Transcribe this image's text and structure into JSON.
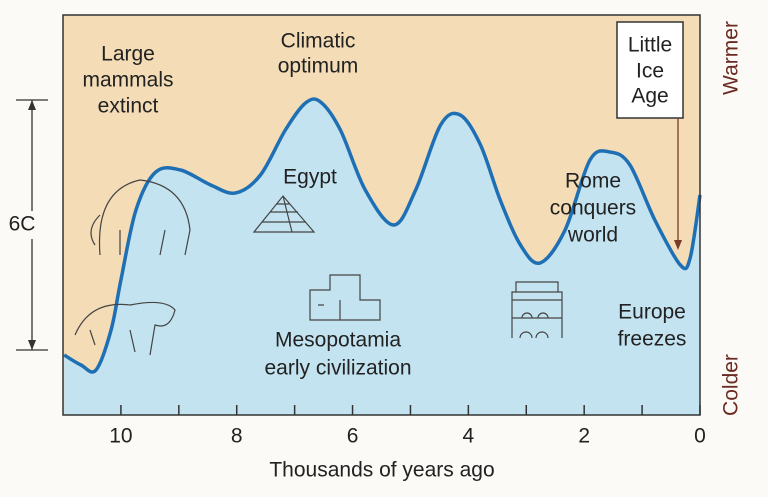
{
  "chart_data": {
    "type": "line",
    "x_label": "Thousands of years ago",
    "xlim": [
      11,
      0
    ],
    "xticks": [
      10,
      8,
      6,
      4,
      2,
      0
    ],
    "minor_xticks": [
      9,
      7,
      5,
      3,
      1
    ],
    "ylim": [
      0,
      9.6
    ],
    "y_top_label": "Warmer",
    "y_bottom_label": "Colder",
    "range_bracket": {
      "label": "6C",
      "from": 1.56,
      "to": 7.56
    },
    "series": [
      {
        "color": "#1f6fb4",
        "x": [
          10.98,
          10.69,
          10.43,
          10.17,
          10,
          9.74,
          9.4,
          8.97,
          8.45,
          8.02,
          7.59,
          7.16,
          6.81,
          6.55,
          6.21,
          5.78,
          5.29,
          4.91,
          4.48,
          4.14,
          3.79,
          3.45,
          3.1,
          2.76,
          2.33,
          1.9,
          1.55,
          1.21,
          0.78,
          0.34,
          0.17,
          0
        ],
        "values": [
          1.44,
          1.2,
          1.08,
          2.04,
          3.24,
          4.92,
          5.83,
          5.88,
          5.52,
          5.33,
          5.76,
          6.84,
          7.49,
          7.51,
          6.84,
          5.4,
          4.56,
          5.4,
          6.96,
          7.2,
          6.48,
          5.16,
          4.08,
          3.65,
          4.44,
          6.12,
          6.31,
          6.0,
          4.68,
          3.6,
          3.77,
          5.28
        ]
      }
    ],
    "annotations": [
      [
        "Large",
        "mammals",
        "extinct"
      ],
      [
        "Climatic",
        "optimum"
      ],
      [
        "Little",
        "Ice",
        "Age"
      ],
      [
        "Egypt"
      ],
      [
        "Rome",
        "conquers",
        "world"
      ],
      [
        "Mesopotamia",
        "early civilization"
      ],
      [
        "Europe",
        "freezes"
      ]
    ]
  }
}
